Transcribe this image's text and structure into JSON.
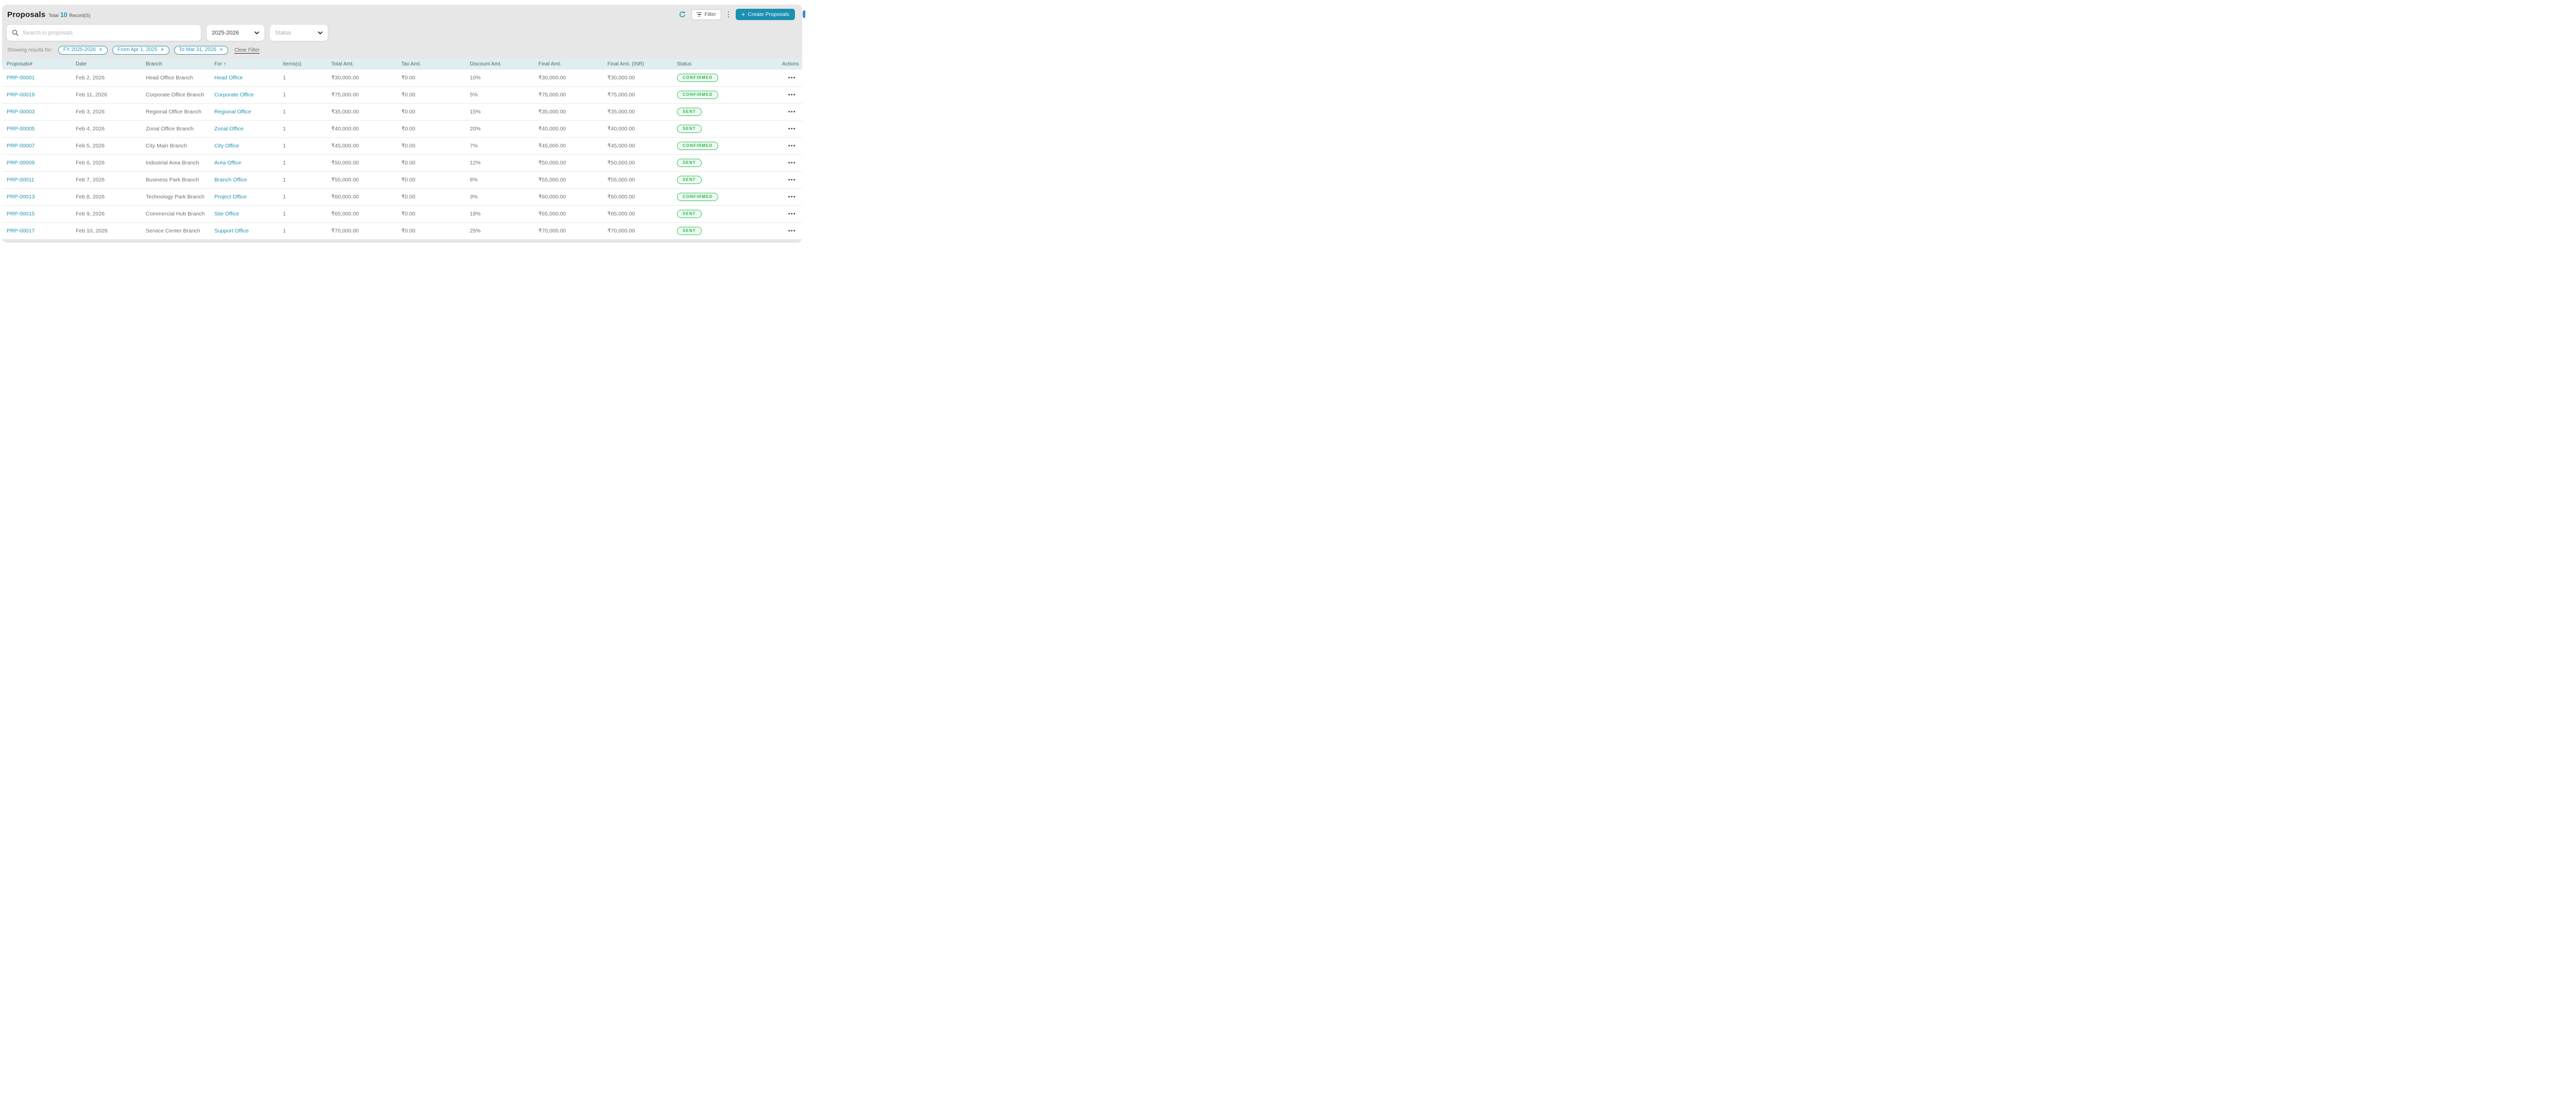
{
  "page": {
    "title": "Proposals",
    "total_label": "Total",
    "total_count": "10",
    "records_label": "Record(S)"
  },
  "toolbar": {
    "filter_label": "Filter",
    "create_label": "Create Proposals",
    "plus_glyph": "+",
    "search_placeholder": "Search in proposals",
    "fiscal_year_value": "2025-2026",
    "status_placeholder": "Status"
  },
  "filters": {
    "showing_label": "Showing results for:",
    "chips": [
      "FY 2025-2026",
      "From Apr 1, 2025",
      "To Mar 31, 2026"
    ],
    "close_glyph": "✕",
    "clear_label": "Clear Filter"
  },
  "table": {
    "columns": [
      "Proposals#",
      "Date",
      "Branch",
      "For",
      "Items(s)",
      "Total Amt.",
      "Tax Amt.",
      "Discount Amt.",
      "Final Amt.",
      "Final Amt. (INR)",
      "Status",
      "Actions"
    ],
    "sort_column": "For",
    "sort_arrow": "↑",
    "actions_icon": "•••",
    "rows": [
      {
        "id": "PRP-00001",
        "date": "Feb 2, 2026",
        "branch": "Head Office Branch",
        "for": "Head Office",
        "items": "1",
        "total": "₹30,000.00",
        "tax": "₹0.00",
        "discount": "10%",
        "final": "₹30,000.00",
        "final_inr": "₹30,000.00",
        "status": "CONFIRMED"
      },
      {
        "id": "PRP-00019",
        "date": "Feb 11, 2026",
        "branch": "Corporate Office Branch",
        "for": "Corporate Office",
        "items": "1",
        "total": "₹75,000.00",
        "tax": "₹0.00",
        "discount": "5%",
        "final": "₹75,000.00",
        "final_inr": "₹75,000.00",
        "status": "CONFIRMED"
      },
      {
        "id": "PRP-00003",
        "date": "Feb 3, 2026",
        "branch": "Regional Office Branch",
        "for": "Regional Office",
        "items": "1",
        "total": "₹35,000.00",
        "tax": "₹0.00",
        "discount": "15%",
        "final": "₹35,000.00",
        "final_inr": "₹35,000.00",
        "status": "SENT"
      },
      {
        "id": "PRP-00005",
        "date": "Feb 4, 2026",
        "branch": "Zonal Office Branch",
        "for": "Zonal Office",
        "items": "1",
        "total": "₹40,000.00",
        "tax": "₹0.00",
        "discount": "20%",
        "final": "₹40,000.00",
        "final_inr": "₹40,000.00",
        "status": "SENT"
      },
      {
        "id": "PRP-00007",
        "date": "Feb 5, 2026",
        "branch": "City Main Branch",
        "for": "City Office",
        "items": "1",
        "total": "₹45,000.00",
        "tax": "₹0.00",
        "discount": "7%",
        "final": "₹45,000.00",
        "final_inr": "₹45,000.00",
        "status": "CONFIRMED"
      },
      {
        "id": "PRP-00009",
        "date": "Feb 6, 2026",
        "branch": "Industrial Area Branch",
        "for": "Area Office",
        "items": "1",
        "total": "₹50,000.00",
        "tax": "₹0.00",
        "discount": "12%",
        "final": "₹50,000.00",
        "final_inr": "₹50,000.00",
        "status": "SENT"
      },
      {
        "id": "PRP-00011",
        "date": "Feb 7, 2026",
        "branch": "Business Park Branch",
        "for": "Branch Office",
        "items": "1",
        "total": "₹55,000.00",
        "tax": "₹0.00",
        "discount": "8%",
        "final": "₹55,000.00",
        "final_inr": "₹55,000.00",
        "status": "SENT"
      },
      {
        "id": "PRP-00013",
        "date": "Feb 8, 2026",
        "branch": "Technology Park Branch",
        "for": "Project Office",
        "items": "1",
        "total": "₹60,000.00",
        "tax": "₹0.00",
        "discount": "3%",
        "final": "₹60,000.00",
        "final_inr": "₹60,000.00",
        "status": "CONFIRMED"
      },
      {
        "id": "PRP-00015",
        "date": "Feb 9, 2026",
        "branch": "Commercial Hub Branch",
        "for": "Site Office",
        "items": "1",
        "total": "₹65,000.00",
        "tax": "₹0.00",
        "discount": "18%",
        "final": "₹65,000.00",
        "final_inr": "₹65,000.00",
        "status": "SENT"
      },
      {
        "id": "PRP-00017",
        "date": "Feb 10, 2026",
        "branch": "Service Center Branch",
        "for": "Support Office",
        "items": "1",
        "total": "₹70,000.00",
        "tax": "₹0.00",
        "discount": "25%",
        "final": "₹70,000.00",
        "final_inr": "₹70,000.00",
        "status": "SENT"
      }
    ]
  },
  "colors": {
    "accent_teal": "#1b90b1",
    "link_teal": "#1f94ae",
    "badge_green": "#29b24d",
    "header_band": "#e0eef1",
    "panel_gray": "#e7e7e7"
  }
}
